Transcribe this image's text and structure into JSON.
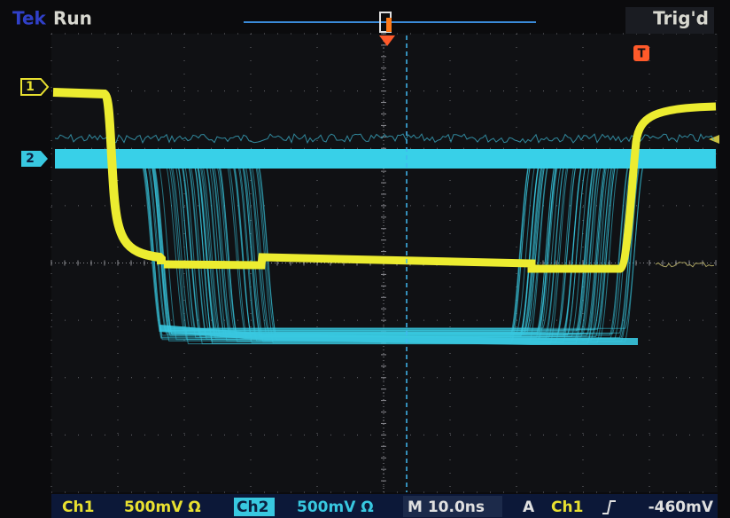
{
  "header": {
    "brand": "Tek",
    "status": "Run",
    "trigger_status": "Trig'd"
  },
  "markers": {
    "ch1": "1",
    "ch2": "2",
    "trigger": "T"
  },
  "footer": {
    "ch1_label": "Ch1",
    "ch1_scale": "500mV Ω",
    "ch2_label": "Ch2",
    "ch2_scale": "500mV Ω",
    "timebase": "M 10.0ns",
    "trigger_mode": "A",
    "trigger_source": "Ch1",
    "trigger_level": "-460mV"
  }
}
